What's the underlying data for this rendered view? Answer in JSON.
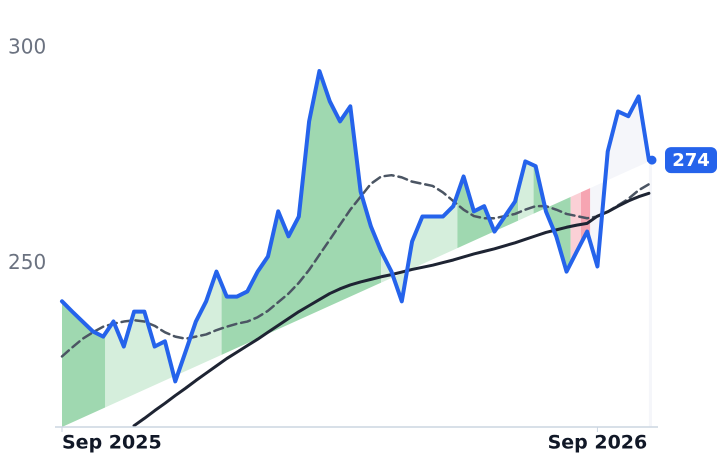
{
  "chart_data": {
    "type": "line",
    "x": [
      0,
      1,
      2,
      3,
      4,
      5,
      6,
      7,
      8,
      9,
      10,
      11,
      12,
      13,
      14,
      15,
      16,
      17,
      18,
      19,
      20,
      21,
      22,
      23,
      24,
      25,
      26,
      27,
      28,
      29,
      30,
      31,
      32,
      33,
      34,
      35,
      36,
      37,
      38,
      39,
      40,
      41,
      42,
      43,
      44,
      45,
      46,
      47,
      48,
      49,
      50,
      51,
      52,
      53,
      54,
      55,
      56,
      57
    ],
    "series": [
      {
        "color": "#2563eb",
        "style": "solid",
        "width": 4,
        "values": [
          241.2,
          238.8,
          236.5,
          234.2,
          233,
          236.5,
          230.7,
          238.8,
          238.8,
          230.7,
          231.9,
          222.6,
          229.5,
          236.5,
          241.2,
          248.1,
          242.3,
          242.3,
          243.5,
          248.1,
          251.6,
          262.1,
          256.3,
          260.9,
          283,
          294.7,
          287.7,
          283,
          286.5,
          266.7,
          258.6,
          252.8,
          248.1,
          241.2,
          255.1,
          260.9,
          260.9,
          260.9,
          263.3,
          270.2,
          262.1,
          263.3,
          257.4,
          260.9,
          264.4,
          273.7,
          272.6,
          262.1,
          256.3,
          248.1,
          252.8,
          257.4,
          249.3,
          276,
          285.3,
          284.2,
          288.8,
          274
        ]
      },
      {
        "color": "#1e2433",
        "style": "solid",
        "width": 3,
        "values": [
          null,
          null,
          null,
          null,
          null,
          null,
          null,
          212.3,
          214,
          215.8,
          217.5,
          219.3,
          221,
          222.8,
          224.5,
          226.2,
          227.9,
          229.4,
          230.9,
          232.4,
          234,
          235.6,
          237.2,
          238.8,
          240.2,
          241.6,
          243,
          244.1,
          245,
          245.7,
          246.3,
          246.9,
          247.4,
          248,
          248.6,
          249.1,
          249.6,
          250.2,
          250.8,
          251.5,
          252.2,
          252.8,
          253.4,
          254.1,
          254.8,
          255.6,
          256.4,
          257.2,
          257.8,
          258.4,
          258.9,
          259.3,
          261,
          262,
          263.3,
          264.5,
          265.5,
          266.3
        ]
      },
      {
        "color": "#4b5563",
        "style": "dashed",
        "width": 2.5,
        "values": [
          228.4,
          230.5,
          232.5,
          234,
          235.3,
          236,
          236.5,
          236.8,
          236.5,
          235.5,
          234,
          233,
          232.5,
          233,
          233.5,
          234.5,
          235.3,
          236,
          236.5,
          237.5,
          239,
          241,
          243,
          245.5,
          248.5,
          252,
          255.5,
          259,
          262.5,
          265.5,
          268.5,
          270.2,
          270.5,
          270,
          269,
          268.5,
          268,
          266.5,
          264.5,
          262.5,
          261,
          260.5,
          260.5,
          261,
          261.5,
          262.5,
          263.3,
          263.3,
          262.5,
          261.5,
          261,
          260.5,
          260.9,
          262,
          263.5,
          265,
          267,
          268.4
        ]
      }
    ],
    "regions": [
      {
        "x": [
          0,
          4.2
        ],
        "color": "#9fd8b0"
      },
      {
        "x": [
          4.2,
          15.5
        ],
        "color": "#d5eedc"
      },
      {
        "x": [
          15.5,
          31
        ],
        "color": "#9fd8b0"
      },
      {
        "x": [
          31,
          38.4
        ],
        "color": "#d5eedc"
      },
      {
        "x": [
          38.4,
          44.3
        ],
        "color": "#9fd8b0"
      },
      {
        "x": [
          44.3,
          45.8
        ],
        "color": "#d5eedc"
      },
      {
        "x": [
          45.8,
          49.4
        ],
        "color": "#9fd8b0"
      },
      {
        "x": [
          49.4,
          50.4
        ],
        "color": "#fbd0d6"
      },
      {
        "x": [
          50.4,
          51.3
        ],
        "color": "#f6a5b2"
      },
      {
        "x": [
          51.3,
          57.3
        ],
        "color": "#f5f6fa"
      }
    ],
    "last_price": 274,
    "xlim": [
      0,
      57.3
    ],
    "ylim": [
      212,
      304
    ],
    "xticks": [
      {
        "value": 0,
        "label": "Sep 2025"
      },
      {
        "value": 52,
        "label": "Sep 2026"
      }
    ],
    "yticks": [
      250,
      300
    ]
  }
}
